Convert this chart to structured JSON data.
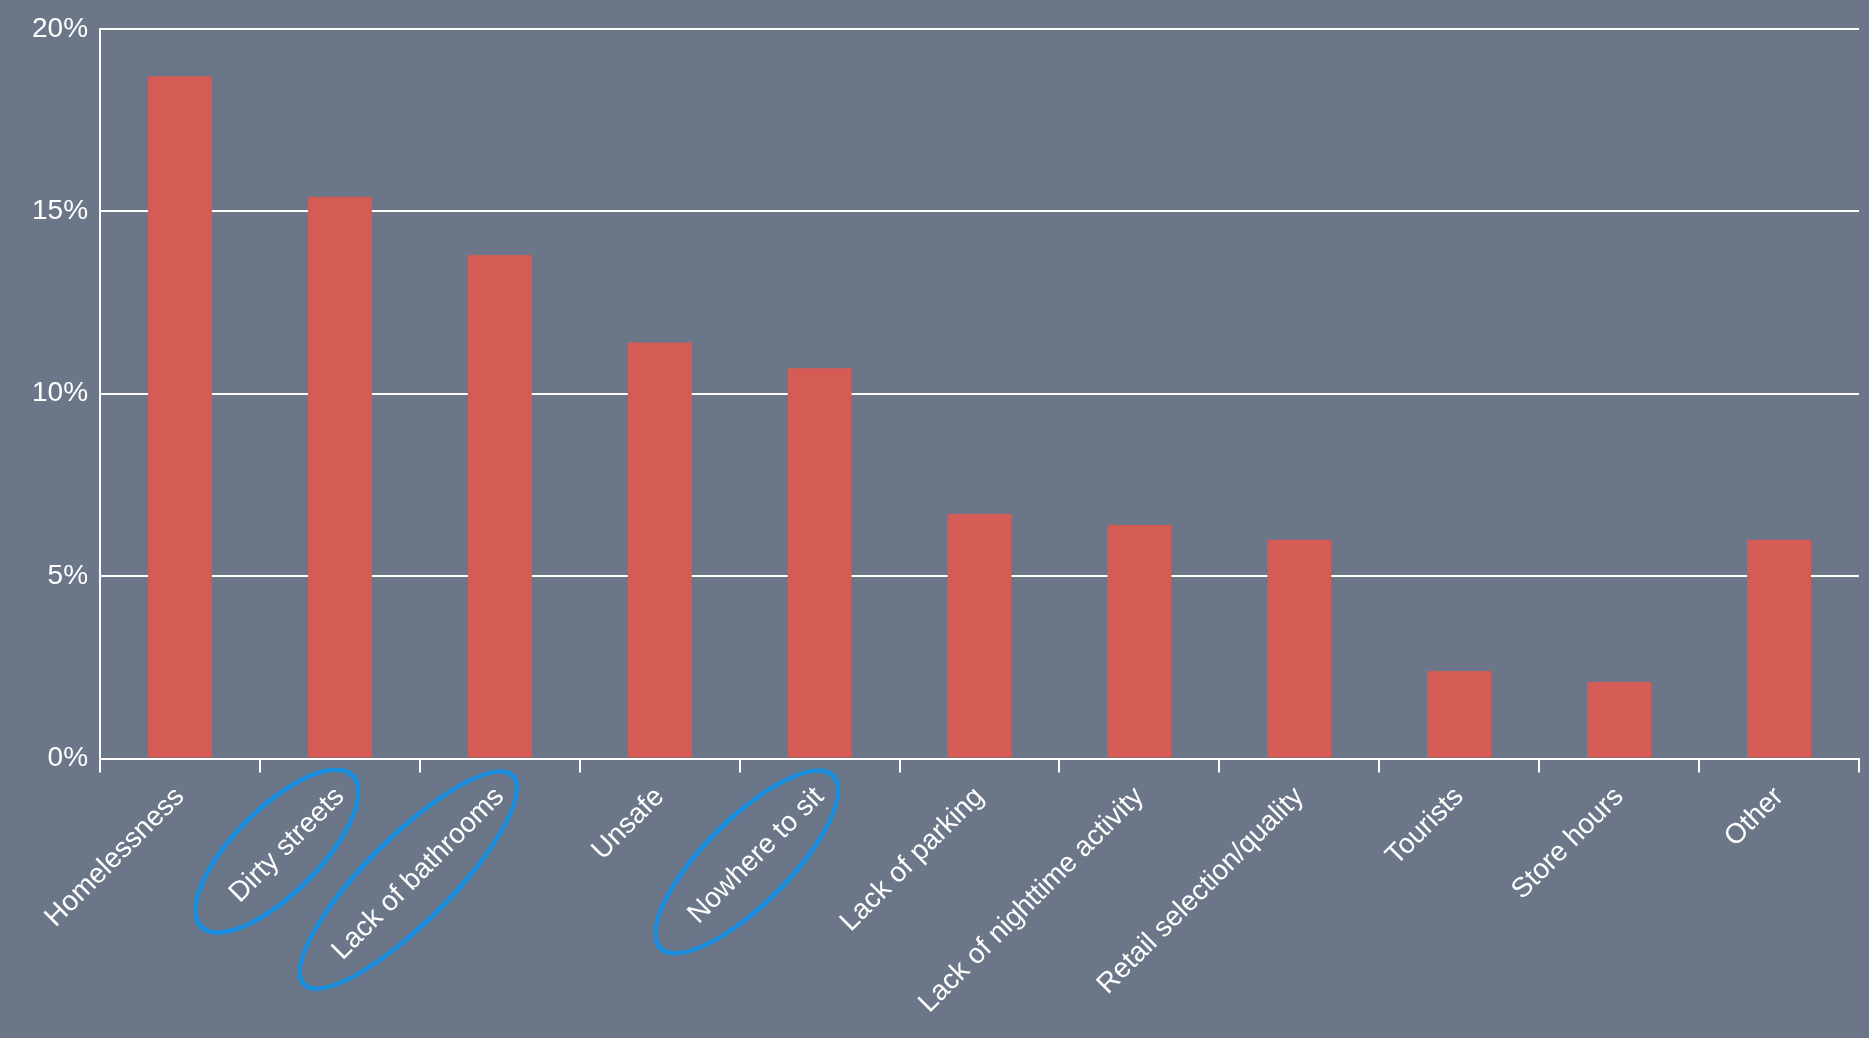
{
  "chart_data": {
    "type": "bar",
    "categories": [
      "Homelessness",
      "Dirty streets",
      "Lack of bathrooms",
      "Unsafe",
      "Nowhere to sit",
      "Lack of parking",
      "Lack of nighttime activity",
      "Retail selection/quality",
      "Tourists",
      "Store hours",
      "Other"
    ],
    "values": [
      18.7,
      15.4,
      13.8,
      11.4,
      10.7,
      6.7,
      6.4,
      6.0,
      2.4,
      2.1,
      6.0
    ],
    "color": "#d45c55",
    "ylim": [
      0,
      20
    ],
    "yticks": [
      {
        "value": 0,
        "label": "0%"
      },
      {
        "value": 5,
        "label": "5%"
      },
      {
        "value": 10,
        "label": "10%"
      },
      {
        "value": 15,
        "label": "15%"
      },
      {
        "value": 20,
        "label": "20%"
      }
    ],
    "grid": "y",
    "legend": false
  }
}
